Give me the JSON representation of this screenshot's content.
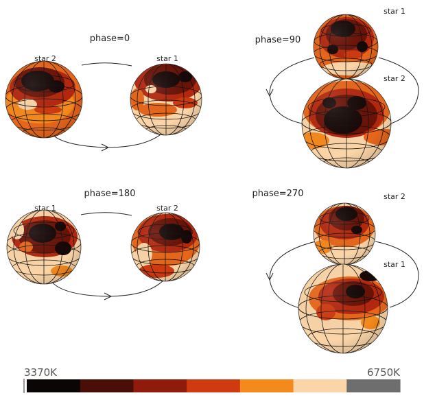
{
  "panels": [
    {
      "phase_label": "phase=0",
      "stars": [
        {
          "label": "star 2"
        },
        {
          "label": "star 1"
        }
      ]
    },
    {
      "phase_label": "phase=90",
      "stars": [
        {
          "label": "star 1"
        },
        {
          "label": "star 2"
        }
      ]
    },
    {
      "phase_label": "phase=180",
      "stars": [
        {
          "label": "star 1"
        },
        {
          "label": "star 2"
        }
      ]
    },
    {
      "phase_label": "phase=270",
      "stars": [
        {
          "label": "star 2"
        },
        {
          "label": "star 1"
        }
      ]
    }
  ],
  "colorbar": {
    "min_label": "3370K",
    "max_label": "6750K",
    "colors": [
      "#0a0606",
      "#4a0e08",
      "#901a0c",
      "#cf3a10",
      "#f58a1c",
      "#fbd5a8",
      "#6e6e6e"
    ]
  },
  "colors": {
    "spot_dark": "#170707",
    "spot_mid": "#6a1206",
    "cool_red": "#b3280e",
    "orange": "#e7671a",
    "bright_orange": "#f58a1c",
    "pale": "#fbd5a8",
    "grid_line": "#111111"
  }
}
